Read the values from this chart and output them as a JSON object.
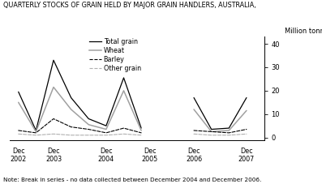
{
  "title": "QUARTERLY STOCKS OF GRAIN HELD BY MAJOR GRAIN HANDLERS, AUSTRALIA,",
  "note": "Note: Break in series - no data collected between December 2004 and December 2006.",
  "ylabel": "Million tonnes",
  "yticks": [
    0,
    10,
    20,
    30,
    40
  ],
  "ylim": [
    -1,
    43
  ],
  "background_color": "#ffffff",
  "series": {
    "Total grain": {
      "color": "#000000",
      "linestyle": "solid",
      "linewidth": 0.9,
      "segments": [
        {
          "x": [
            0,
            1,
            2,
            3,
            4,
            5,
            6,
            7
          ],
          "y": [
            19.5,
            3.0,
            33.0,
            17.0,
            8.0,
            5.0,
            25.5,
            4.0
          ]
        },
        {
          "x": [
            10,
            11,
            12,
            13
          ],
          "y": [
            17.0,
            3.5,
            4.0,
            17.0
          ]
        }
      ]
    },
    "Wheat": {
      "color": "#a0a0a0",
      "linestyle": "solid",
      "linewidth": 1.1,
      "segments": [
        {
          "x": [
            0,
            1,
            2,
            3,
            4,
            5,
            6,
            7
          ],
          "y": [
            15.0,
            2.5,
            21.5,
            12.0,
            5.5,
            3.5,
            20.0,
            3.0
          ]
        },
        {
          "x": [
            10,
            11,
            12,
            13
          ],
          "y": [
            12.0,
            2.5,
            3.0,
            11.5
          ]
        }
      ]
    },
    "Barley": {
      "color": "#000000",
      "linestyle": "dashed",
      "linewidth": 0.8,
      "segments": [
        {
          "x": [
            0,
            1,
            2,
            3,
            4,
            5,
            6,
            7
          ],
          "y": [
            3.0,
            2.0,
            8.0,
            4.5,
            3.5,
            2.0,
            4.0,
            2.0
          ]
        },
        {
          "x": [
            10,
            11,
            12,
            13
          ],
          "y": [
            3.0,
            2.5,
            2.0,
            3.5
          ]
        }
      ]
    },
    "Other grain": {
      "color": "#b0b0b0",
      "linestyle": "dashed",
      "linewidth": 0.8,
      "segments": [
        {
          "x": [
            0,
            1,
            2,
            3,
            4,
            5,
            6,
            7
          ],
          "y": [
            1.5,
            1.0,
            1.5,
            1.0,
            1.0,
            1.0,
            1.5,
            1.0
          ]
        },
        {
          "x": [
            10,
            11,
            12,
            13
          ],
          "y": [
            1.5,
            1.0,
            1.0,
            1.5
          ]
        }
      ]
    }
  },
  "xtick_positions": [
    0,
    2,
    5,
    7.5,
    10,
    13
  ],
  "xtick_labels": [
    "Dec\n2002",
    "Dec\n2003",
    "Dec\n2004",
    "Dec\n2005",
    "Dec\n2006",
    "Dec\n2007"
  ],
  "xlim": [
    -0.5,
    14.0
  ],
  "legend_entries": [
    {
      "label": "Total grain",
      "color": "#000000",
      "ls": "solid",
      "lw": 0.9
    },
    {
      "label": "Wheat",
      "color": "#a0a0a0",
      "ls": "solid",
      "lw": 1.1
    },
    {
      "label": "Barley",
      "color": "#000000",
      "ls": "dashed",
      "lw": 0.8
    },
    {
      "label": "Other grain",
      "color": "#b0b0b0",
      "ls": "dashed",
      "lw": 0.8
    }
  ]
}
